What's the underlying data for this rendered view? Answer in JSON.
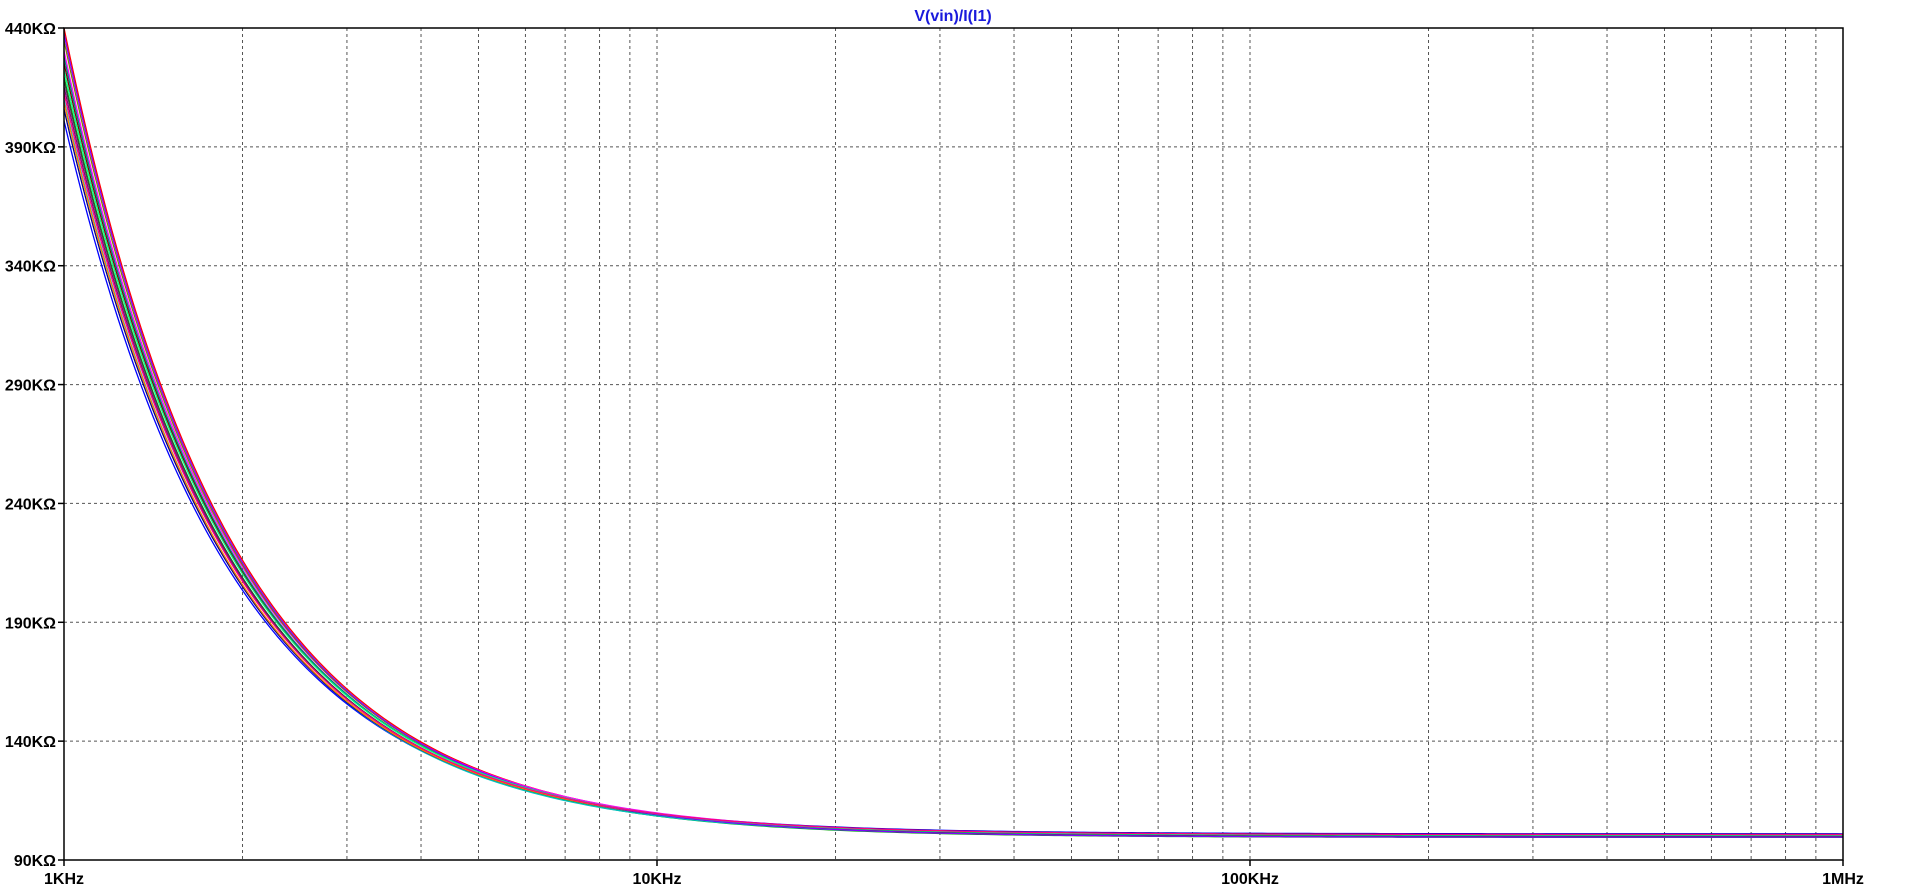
{
  "chart_data": {
    "type": "line",
    "title": "V(vin)/I(I1)",
    "title_color": "#1a1adc",
    "x_scale": "log",
    "xlim": [
      1000,
      1000000
    ],
    "ylim": [
      90000,
      440000
    ],
    "grid": true,
    "x_ticks": [
      {
        "value": 1000,
        "label": "1KHz"
      },
      {
        "value": 10000,
        "label": "10KHz"
      },
      {
        "value": 100000,
        "label": "100KHz"
      },
      {
        "value": 1000000,
        "label": "1MHz"
      }
    ],
    "y_ticks": [
      {
        "value": 440000,
        "label": "440KΩ"
      },
      {
        "value": 390000,
        "label": "390KΩ"
      },
      {
        "value": 340000,
        "label": "340KΩ"
      },
      {
        "value": 290000,
        "label": "290KΩ"
      },
      {
        "value": 240000,
        "label": "240KΩ"
      },
      {
        "value": 190000,
        "label": "190KΩ"
      },
      {
        "value": 140000,
        "label": "140KΩ"
      },
      {
        "value": 90000,
        "label": "90KΩ"
      }
    ],
    "series": [
      {
        "color": "#ff0000",
        "r0": 100000,
        "r1": 340000
      },
      {
        "color": "#0000ff",
        "r0": 101000,
        "r1": 300000
      },
      {
        "color": "#00a000",
        "r0": 99500,
        "r1": 320000
      },
      {
        "color": "#ff00ff",
        "r0": 100500,
        "r1": 330000
      },
      {
        "color": "#00c0c0",
        "r0": 99800,
        "r1": 310000
      },
      {
        "color": "#800000",
        "r0": 100200,
        "r1": 325000
      },
      {
        "color": "#000080",
        "r0": 100800,
        "r1": 305000
      },
      {
        "color": "#808000",
        "r0": 99700,
        "r1": 335000
      },
      {
        "color": "#800080",
        "r0": 100300,
        "r1": 315000
      },
      {
        "color": "#008080",
        "r0": 99900,
        "r1": 328000
      },
      {
        "color": "#404040",
        "r0": 100100,
        "r1": 318000
      },
      {
        "color": "#ff8000",
        "r0": 100600,
        "r1": 308000
      },
      {
        "color": "#8000ff",
        "r0": 99600,
        "r1": 338000
      },
      {
        "color": "#00ff80",
        "r0": 100400,
        "r1": 322000
      },
      {
        "color": "#ff0080",
        "r0": 100700,
        "r1": 312000
      }
    ]
  }
}
